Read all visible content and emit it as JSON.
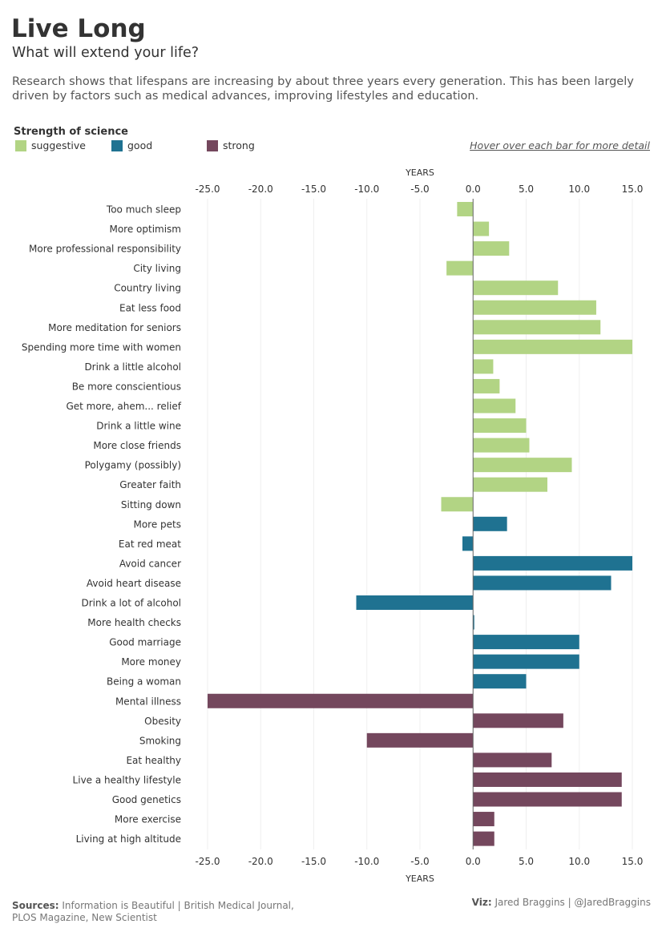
{
  "header": {
    "title": "Live Long",
    "subtitle": "What will extend your life?",
    "description": "Research shows that lifespans are increasing by about three years every generation. This has been largely driven by factors such as medical advances, improving lifestyles and education."
  },
  "legend": {
    "title": "Strength of science",
    "items": [
      {
        "label": "suggestive",
        "color": "#b2d484"
      },
      {
        "label": "good",
        "color": "#1f7291"
      },
      {
        "label": "strong",
        "color": "#74475d"
      }
    ],
    "hint": "Hover over each bar for more detail"
  },
  "chart_data": {
    "type": "bar",
    "orientation": "horizontal",
    "xlabel": "YEARS",
    "xlim": [
      -25,
      15
    ],
    "xticks": [
      "-25.0",
      "-20.0",
      "-15.0",
      "-10.0",
      "-5.0",
      "0.0",
      "5.0",
      "10.0",
      "15.0"
    ],
    "xtick_values": [
      -25,
      -20,
      -15,
      -10,
      -5,
      0,
      5,
      10,
      15
    ],
    "grid": true,
    "legend_position": "top-left",
    "colors": {
      "suggestive": "#b2d484",
      "good": "#1f7291",
      "strong": "#74475d"
    },
    "categories": [
      "Too much sleep",
      "More optimism",
      "More professional responsibility",
      "City living",
      "Country living",
      "Eat less food",
      "More meditation for seniors",
      "Spending more time with women",
      "Drink a  little alcohol",
      "Be more conscientious",
      "Get more, ahem... relief",
      "Drink a little wine",
      "More close friends",
      "Polygamy (possibly)",
      "Greater faith",
      "Sitting down",
      "More pets",
      "Eat red meat",
      "Avoid cancer",
      "Avoid heart disease",
      "Drink a lot of alcohol",
      "More health checks",
      "Good marriage",
      "More money",
      "Being a woman",
      "Mental illness",
      "Obesity",
      "Smoking",
      "Eat healthy",
      "Live a healthy lifestyle",
      "Good genetics",
      "More exercise",
      "Living at high altitude"
    ],
    "values": [
      -1.5,
      1.5,
      3.4,
      -2.5,
      8,
      11.6,
      12,
      15,
      1.9,
      2.5,
      4,
      5,
      5.3,
      9.3,
      7,
      -3,
      3.2,
      -1,
      15,
      13,
      -11,
      0.1,
      10,
      10,
      5,
      -25,
      8.5,
      -10,
      7.4,
      14,
      14,
      2,
      2
    ],
    "strength": [
      "suggestive",
      "suggestive",
      "suggestive",
      "suggestive",
      "suggestive",
      "suggestive",
      "suggestive",
      "suggestive",
      "suggestive",
      "suggestive",
      "suggestive",
      "suggestive",
      "suggestive",
      "suggestive",
      "suggestive",
      "suggestive",
      "good",
      "good",
      "good",
      "good",
      "good",
      "good",
      "good",
      "good",
      "good",
      "strong",
      "strong",
      "strong",
      "strong",
      "strong",
      "strong",
      "strong",
      "strong"
    ]
  },
  "footer": {
    "sources_label": "Sources:",
    "sources_line1": "Information is Beautiful | British Medical Journal,",
    "sources_line2": "PLOS Magazine, New Scientist",
    "viz_label": "Viz:",
    "viz_text": "Jared Braggins | @JaredBraggins"
  }
}
